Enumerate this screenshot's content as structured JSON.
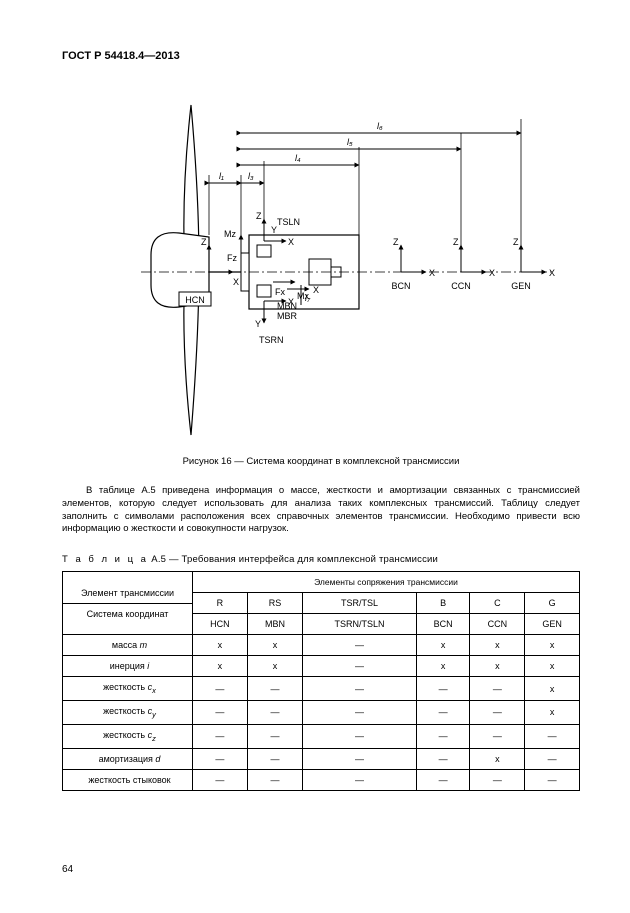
{
  "doc_id": "ГОСТ Р 54418.4—2013",
  "figure": {
    "caption": "Рисунок 16 — Система координат в комплексной трансмиссии",
    "labels": {
      "l1": "l₁",
      "l3": "l₃",
      "l4": "l₄",
      "l5": "l₅",
      "l6": "l₆",
      "l7": "l₇",
      "HCN": "HCN",
      "TSLN": "TSLN",
      "TSRN": "TSRN",
      "MBN": "MBN",
      "MBR": "MBR",
      "BCN": "BCN",
      "CCN": "CCN",
      "GEN": "GEN",
      "Fz": "Fz",
      "Mz": "Mz",
      "Fx": "Fx",
      "Mx": "Mx",
      "X": "X",
      "Y": "Y",
      "Z": "Z"
    }
  },
  "paragraph": "В таблице А.5 приведена информация о массе, жесткости и амортизации связанных с трансмиссией элементов, которую следует использовать для анализа таких комплексных трансмиссий. Таблицу следует заполнить с символами расположения всех справочных элементов трансмиссии. Необходимо привести всю информацию о жесткости и совокупности нагрузок.",
  "table": {
    "caption_prefix": "Т а б л и ц а",
    "caption_rest": "  А.5 — Требования интерфейса для комплексной трансмиссии",
    "group_header": "Элементы сопряжения трансмиссии",
    "col_labels_row1_left": "Элемент трансмиссии",
    "col_labels_row2_left": "Система координат",
    "columns": [
      "R",
      "RS",
      "TSR/TSL",
      "B",
      "C",
      "G"
    ],
    "columns2": [
      "HCN",
      "MBN",
      "TSRN/TSLN",
      "BCN",
      "CCN",
      "GEN"
    ],
    "rows": [
      {
        "label_html": "масса <span class='ital'>m</span>",
        "cells": [
          "x",
          "x",
          "—",
          "x",
          "x",
          "x"
        ]
      },
      {
        "label_html": "инерция <span class='ital'>i</span>",
        "cells": [
          "x",
          "x",
          "—",
          "x",
          "x",
          "x"
        ]
      },
      {
        "label_html": "жесткость <span class='ital'>c<sub>x</sub></span>",
        "cells": [
          "—",
          "—",
          "—",
          "—",
          "—",
          "x"
        ]
      },
      {
        "label_html": "жесткость <span class='ital'>c<sub>y</sub></span>",
        "cells": [
          "—",
          "—",
          "—",
          "—",
          "—",
          "x"
        ]
      },
      {
        "label_html": "жесткость <span class='ital'>c<sub>z</sub></span>",
        "cells": [
          "—",
          "—",
          "—",
          "—",
          "—",
          "—"
        ]
      },
      {
        "label_html": "амортизация <span class='ital'>d</span>",
        "cells": [
          "—",
          "—",
          "—",
          "—",
          "x",
          "—"
        ]
      },
      {
        "label_html": "жесткость стыковок",
        "cells": [
          "—",
          "—",
          "—",
          "—",
          "—",
          "—"
        ]
      }
    ]
  },
  "page_number": "64",
  "style": {
    "background": "#ffffff",
    "text_color": "#000000",
    "border_color": "#000000",
    "body_fontsize": 9.5,
    "table_fontsize": 9
  }
}
